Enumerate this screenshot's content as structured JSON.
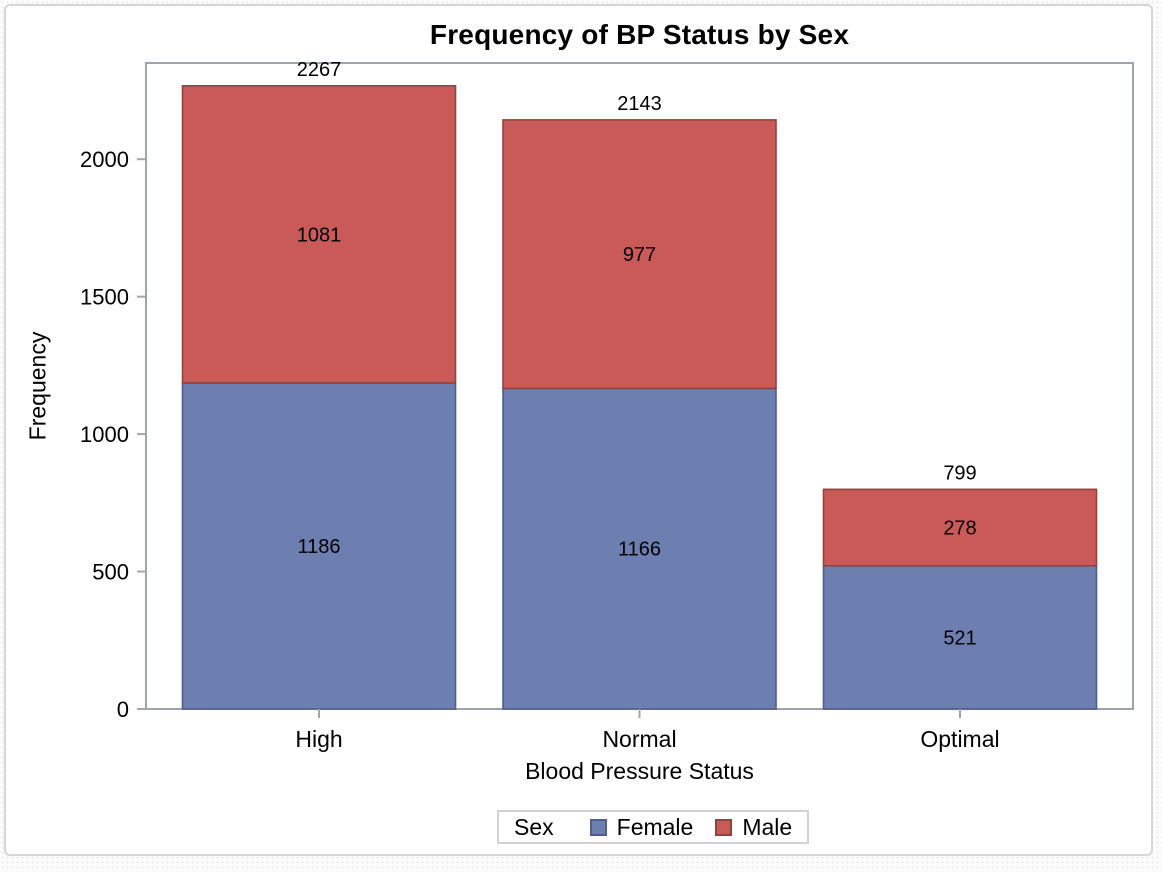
{
  "chart_data": {
    "type": "bar",
    "stacked": true,
    "title": "Frequency of BP Status by Sex",
    "xlabel": "Blood Pressure Status",
    "ylabel": "Frequency",
    "categories": [
      "High",
      "Normal",
      "Optimal"
    ],
    "series": [
      {
        "name": "Female",
        "values": [
          1186,
          1166,
          521
        ],
        "fill": "#6D7FB1",
        "stroke": "#4E5E8D"
      },
      {
        "name": "Male",
        "values": [
          1081,
          977,
          278
        ],
        "fill": "#C95A58",
        "stroke": "#94433C"
      }
    ],
    "totals": [
      2267,
      2143,
      799
    ],
    "yticks": [
      0,
      500,
      1000,
      1500,
      2000
    ],
    "ylim": [
      0,
      2350
    ],
    "grid": false,
    "legend": {
      "title": "Sex",
      "position": "bottom"
    },
    "colors": {
      "wall_border": "#9da4aa",
      "axis_tick": "#a6a6a6",
      "text": "#000000",
      "figure_border": "#d6d6d6"
    }
  }
}
